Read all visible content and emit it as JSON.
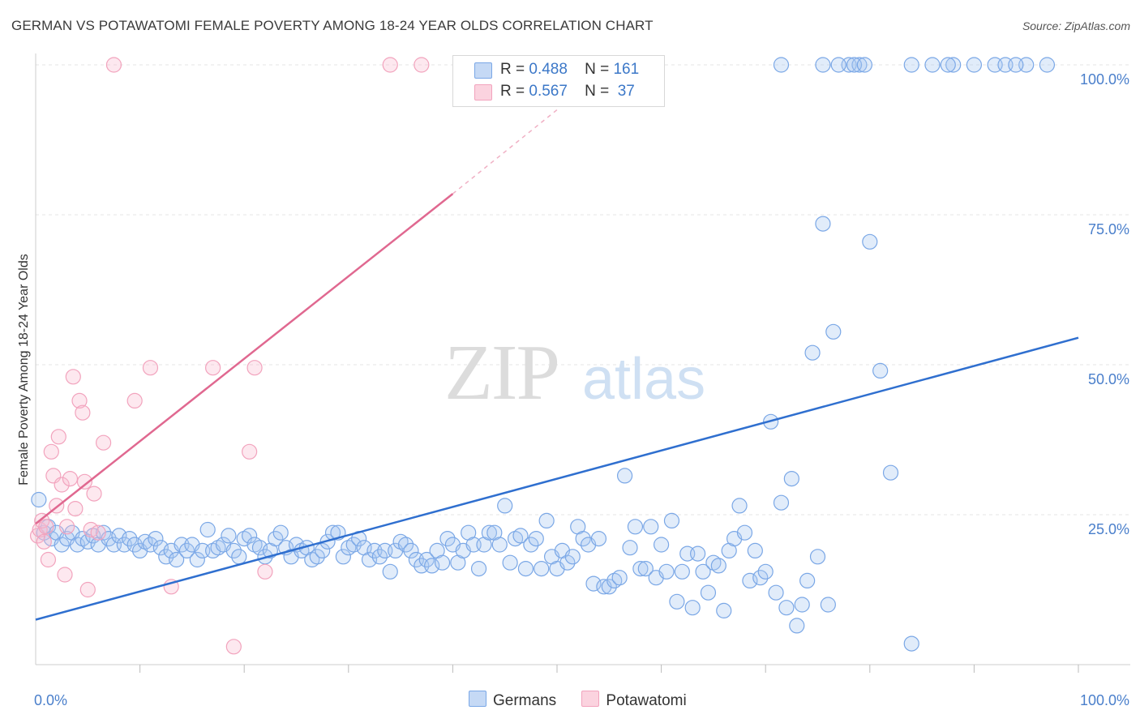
{
  "title": "GERMAN VS POTAWATOMI FEMALE POVERTY AMONG 18-24 YEAR OLDS CORRELATION CHART",
  "source": "Source: ZipAtlas.com",
  "watermark": {
    "zip": "ZIP",
    "atlas": "atlas"
  },
  "chart_data": {
    "type": "scatter",
    "xlabel": "",
    "ylabel": "Female Poverty Among 18-24 Year Olds",
    "xlim": [
      0,
      100
    ],
    "ylim": [
      0,
      100
    ],
    "x_tick_labels": [
      "0.0%",
      "100.0%"
    ],
    "y_tick_labels": [
      "25.0%",
      "50.0%",
      "75.0%",
      "100.0%"
    ],
    "y_ticks": [
      25,
      50,
      75,
      100
    ],
    "grid": true,
    "legend_placement": "top-center",
    "colors": {
      "germans": "#7aa7e6",
      "germans_line": "#2f6fcf",
      "potawatomi": "#f2a3bd",
      "potawatomi_line": "#e06890"
    },
    "stats": [
      {
        "r_label": "R =",
        "r": "0.488",
        "n_label": "N =",
        "n": "161"
      },
      {
        "r_label": "R =",
        "r": "0.567",
        "n_label": "N =",
        "n": "37"
      }
    ],
    "series": [
      {
        "name": "Germans",
        "trend": {
          "x": [
            0,
            100
          ],
          "y": [
            7.5,
            54.5
          ]
        },
        "points": [
          [
            0.3,
            27.5
          ],
          [
            0.8,
            22
          ],
          [
            1.2,
            23
          ],
          [
            1.5,
            21
          ],
          [
            2,
            22
          ],
          [
            2.5,
            20
          ],
          [
            3,
            21
          ],
          [
            3.5,
            22
          ],
          [
            4,
            20
          ],
          [
            4.5,
            21
          ],
          [
            5,
            20.5
          ],
          [
            5.5,
            21.5
          ],
          [
            6,
            20
          ],
          [
            6.5,
            22
          ],
          [
            7,
            21
          ],
          [
            7.5,
            20
          ],
          [
            8,
            21.5
          ],
          [
            8.5,
            20
          ],
          [
            9,
            21
          ],
          [
            9.5,
            20
          ],
          [
            10,
            19
          ],
          [
            10.5,
            20.5
          ],
          [
            11,
            20
          ],
          [
            11.5,
            21
          ],
          [
            12,
            19.5
          ],
          [
            12.5,
            18
          ],
          [
            13,
            19
          ],
          [
            13.5,
            17.5
          ],
          [
            14,
            20
          ],
          [
            14.5,
            19
          ],
          [
            15,
            20
          ],
          [
            15.5,
            17.5
          ],
          [
            16,
            19
          ],
          [
            16.5,
            22.5
          ],
          [
            17,
            19
          ],
          [
            17.5,
            19.5
          ],
          [
            18,
            20
          ],
          [
            18.5,
            21.5
          ],
          [
            19,
            19
          ],
          [
            19.5,
            18
          ],
          [
            20,
            21
          ],
          [
            20.5,
            21.5
          ],
          [
            21,
            20
          ],
          [
            21.5,
            19.5
          ],
          [
            22,
            18
          ],
          [
            22.5,
            19
          ],
          [
            23,
            21
          ],
          [
            23.5,
            22
          ],
          [
            24,
            19.5
          ],
          [
            24.5,
            18
          ],
          [
            25,
            20
          ],
          [
            25.5,
            19
          ],
          [
            26,
            19.5
          ],
          [
            26.5,
            17.5
          ],
          [
            27,
            18
          ],
          [
            27.5,
            19
          ],
          [
            28,
            20.5
          ],
          [
            28.5,
            22
          ],
          [
            29,
            22
          ],
          [
            29.5,
            18
          ],
          [
            30,
            19.5
          ],
          [
            30.5,
            20
          ],
          [
            31,
            21
          ],
          [
            31.5,
            19.5
          ],
          [
            32,
            17.5
          ],
          [
            32.5,
            19
          ],
          [
            33,
            18
          ],
          [
            33.5,
            19
          ],
          [
            34,
            15.5
          ],
          [
            34.5,
            19
          ],
          [
            35,
            20.5
          ],
          [
            35.5,
            20
          ],
          [
            36,
            19
          ],
          [
            36.5,
            17.5
          ],
          [
            37,
            16.5
          ],
          [
            37.5,
            17.5
          ],
          [
            38,
            16.5
          ],
          [
            38.5,
            19
          ],
          [
            39,
            17
          ],
          [
            39.5,
            21
          ],
          [
            40,
            20
          ],
          [
            40.5,
            17
          ],
          [
            41,
            19
          ],
          [
            41.5,
            22
          ],
          [
            42,
            20
          ],
          [
            42.5,
            16
          ],
          [
            43,
            20
          ],
          [
            43.5,
            22
          ],
          [
            44,
            22
          ],
          [
            44.5,
            20
          ],
          [
            45,
            26.5
          ],
          [
            45.5,
            17
          ],
          [
            46,
            21
          ],
          [
            46.5,
            21.5
          ],
          [
            47,
            16
          ],
          [
            47.5,
            20
          ],
          [
            48,
            21
          ],
          [
            48.5,
            16
          ],
          [
            49,
            24
          ],
          [
            49.5,
            18
          ],
          [
            50,
            16
          ],
          [
            50.5,
            19
          ],
          [
            51,
            17
          ],
          [
            51.5,
            18
          ],
          [
            52,
            23
          ],
          [
            52.5,
            21
          ],
          [
            53,
            20
          ],
          [
            53.5,
            13.5
          ],
          [
            54,
            21
          ],
          [
            54.5,
            13
          ],
          [
            55,
            13
          ],
          [
            55.5,
            14
          ],
          [
            56,
            14.5
          ],
          [
            56.5,
            31.5
          ],
          [
            57,
            19.5
          ],
          [
            57.5,
            23
          ],
          [
            58,
            16
          ],
          [
            58.5,
            16
          ],
          [
            59,
            23
          ],
          [
            59.5,
            14.5
          ],
          [
            60,
            20
          ],
          [
            60.5,
            15.5
          ],
          [
            61,
            24
          ],
          [
            61.5,
            10.5
          ],
          [
            62,
            15.5
          ],
          [
            62.5,
            18.5
          ],
          [
            63,
            9.5
          ],
          [
            63.5,
            18.5
          ],
          [
            64,
            15.5
          ],
          [
            64.5,
            12
          ],
          [
            65,
            17
          ],
          [
            65.5,
            16.5
          ],
          [
            66,
            9
          ],
          [
            66.5,
            19
          ],
          [
            67,
            21
          ],
          [
            67.5,
            26.5
          ],
          [
            68,
            22
          ],
          [
            68.5,
            14
          ],
          [
            69,
            19
          ],
          [
            69.5,
            14.5
          ],
          [
            70,
            15.5
          ],
          [
            70.5,
            40.5
          ],
          [
            71,
            12
          ],
          [
            71.5,
            27
          ],
          [
            72,
            9.5
          ],
          [
            72.5,
            31
          ],
          [
            73,
            6.5
          ],
          [
            73.5,
            10
          ],
          [
            74,
            14
          ],
          [
            74.5,
            52
          ],
          [
            75,
            18
          ],
          [
            75.5,
            73.5
          ],
          [
            76,
            10
          ],
          [
            76.5,
            55.5
          ],
          [
            78,
            100
          ],
          [
            79,
            100
          ],
          [
            80,
            70.5
          ],
          [
            81,
            49
          ],
          [
            82,
            32
          ],
          [
            84,
            3.5
          ],
          [
            86,
            100
          ],
          [
            88,
            100
          ],
          [
            90,
            100
          ],
          [
            92,
            100
          ],
          [
            93,
            100
          ],
          [
            95,
            100
          ],
          [
            71.5,
            100
          ],
          [
            75.5,
            100
          ],
          [
            77,
            100
          ],
          [
            78.5,
            100
          ],
          [
            79.5,
            100
          ],
          [
            84,
            100
          ],
          [
            87.5,
            100
          ],
          [
            94,
            100
          ],
          [
            97,
            100
          ]
        ]
      },
      {
        "name": "Potawatomi",
        "trend": {
          "x": [
            0,
            40
          ],
          "y": [
            23.5,
            78.5
          ]
        },
        "trend_dashed": {
          "x": [
            40,
            50
          ],
          "y": [
            78.5,
            92.5
          ]
        },
        "points": [
          [
            0.2,
            21.5
          ],
          [
            0.4,
            22.5
          ],
          [
            0.6,
            24
          ],
          [
            0.8,
            20.5
          ],
          [
            1,
            23
          ],
          [
            1.2,
            17.5
          ],
          [
            1.5,
            35.5
          ],
          [
            1.7,
            31.5
          ],
          [
            2,
            26.5
          ],
          [
            2.2,
            38
          ],
          [
            2.5,
            30
          ],
          [
            2.8,
            15
          ],
          [
            3,
            23
          ],
          [
            3.3,
            31
          ],
          [
            3.6,
            48
          ],
          [
            3.8,
            26
          ],
          [
            4.2,
            44
          ],
          [
            4.5,
            42
          ],
          [
            4.7,
            30.5
          ],
          [
            5,
            12.5
          ],
          [
            5.3,
            22.5
          ],
          [
            5.6,
            28.5
          ],
          [
            6,
            22
          ],
          [
            6.5,
            37
          ],
          [
            7.5,
            100
          ],
          [
            9.5,
            44
          ],
          [
            11,
            49.5
          ],
          [
            13,
            13
          ],
          [
            17,
            49.5
          ],
          [
            19,
            3
          ],
          [
            20.5,
            35.5
          ],
          [
            21,
            49.5
          ],
          [
            22,
            15.5
          ],
          [
            34,
            100
          ],
          [
            37,
            100
          ]
        ]
      }
    ]
  }
}
